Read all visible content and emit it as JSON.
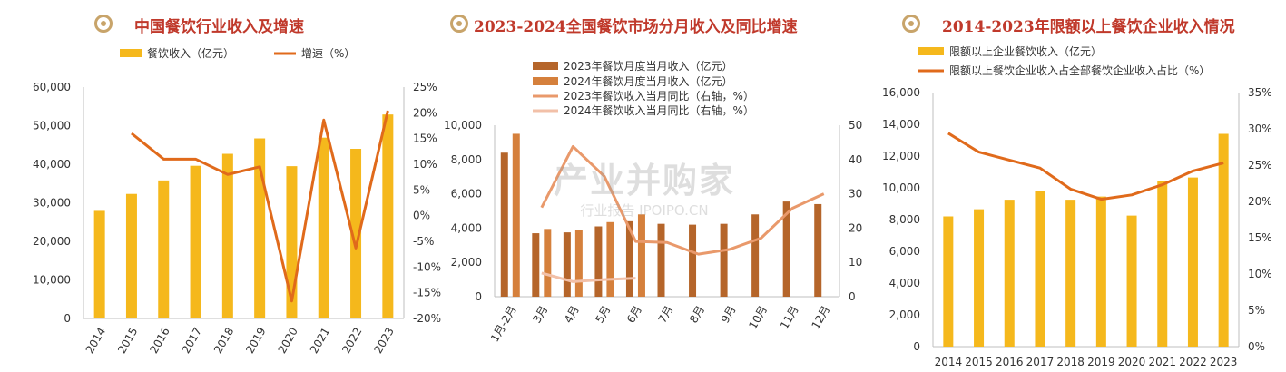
{
  "watermark": {
    "main": "产业并购家",
    "sub": "行业报告 IPOIPO.CN"
  },
  "chart_data": [
    {
      "type": "bar",
      "title": "中国餐饮行业收入及增速",
      "categories": [
        "2014",
        "2015",
        "2016",
        "2017",
        "2018",
        "2019",
        "2020",
        "2021",
        "2022",
        "2023"
      ],
      "series": [
        {
          "name": "餐饮收入（亿元）",
          "kind": "bar",
          "axis": "left",
          "color": "#f5b81c",
          "values": [
            27900,
            32300,
            35800,
            39600,
            42700,
            46700,
            39500,
            46900,
            44000,
            52900
          ]
        },
        {
          "name": "增速（%）",
          "kind": "line",
          "axis": "right",
          "color": "#e06a1b",
          "values": [
            null,
            16,
            11,
            11,
            8,
            9.5,
            -16.6,
            18.6,
            -6.3,
            20.4
          ]
        }
      ],
      "left_axis": {
        "ylim": [
          0,
          60000
        ],
        "ticks": [
          "0",
          "10,000",
          "20,000",
          "30,000",
          "40,000",
          "50,000",
          "60,000"
        ]
      },
      "right_axis": {
        "ylim": [
          -20,
          25
        ],
        "ticks": [
          "-20%",
          "-15%",
          "-10%",
          "-5%",
          "0%",
          "5%",
          "10%",
          "15%",
          "20%",
          "25%"
        ]
      },
      "legend": "top"
    },
    {
      "type": "bar",
      "title": "2023-2024全国餐饮市场分月收入及同比增速",
      "categories": [
        "1月-2月",
        "3月",
        "4月",
        "5月",
        "6月",
        "7月",
        "8月",
        "9月",
        "10月",
        "11月",
        "12月"
      ],
      "series": [
        {
          "name": "2023年餐饮月度当月收入（亿元）",
          "kind": "bar",
          "axis": "left",
          "color": "#b5652a",
          "values": [
            8400,
            3700,
            3750,
            4100,
            4400,
            4250,
            4200,
            4250,
            4800,
            5550,
            5400
          ]
        },
        {
          "name": "2024年餐饮月度当月收入（亿元）",
          "kind": "bar",
          "axis": "left",
          "color": "#d5803c",
          "values": [
            9500,
            3950,
            3900,
            4350,
            4800,
            null,
            null,
            null,
            null,
            null,
            null
          ]
        },
        {
          "name": "2023年餐饮收入当月同比（右轴，%）",
          "kind": "line",
          "axis": "right",
          "color": "#e9996b",
          "values": [
            null,
            26,
            43.8,
            35.1,
            16.1,
            15.8,
            12.4,
            13.8,
            17.1,
            25.8,
            30
          ]
        },
        {
          "name": "2024年餐饮收入当月同比（右轴，%）",
          "kind": "line",
          "axis": "right",
          "color": "#f2c0a8",
          "values": [
            null,
            6.9,
            4.4,
            5,
            5.4,
            null,
            null,
            null,
            null,
            null,
            null
          ]
        }
      ],
      "left_axis": {
        "ylim": [
          0,
          10000
        ],
        "ticks": [
          "0",
          "2,000",
          "4,000",
          "6,000",
          "8,000",
          "10,000"
        ]
      },
      "right_axis": {
        "ylim": [
          0,
          50
        ],
        "ticks": [
          "0",
          "10",
          "20",
          "30",
          "40",
          "50"
        ]
      },
      "legend": "top"
    },
    {
      "type": "bar",
      "title": "2014-2023年限额以上餐饮企业收入情况",
      "categories": [
        "2014",
        "2015",
        "2016",
        "2017",
        "2018",
        "2019",
        "2020",
        "2021",
        "2022",
        "2023"
      ],
      "series": [
        {
          "name": "限额以上企业餐饮收入（亿元）",
          "kind": "bar",
          "axis": "left",
          "color": "#f5b81c",
          "values": [
            8200,
            8650,
            9250,
            9800,
            9250,
            9450,
            8250,
            10450,
            10650,
            13400
          ]
        },
        {
          "name": "限额以上餐饮企业收入占全部餐饮企业收入占比（%）",
          "kind": "line",
          "axis": "right",
          "color": "#e06a1b",
          "values": [
            29.4,
            26.8,
            25.7,
            24.6,
            21.7,
            20.3,
            20.9,
            22.3,
            24.2,
            25.3
          ]
        }
      ],
      "left_axis": {
        "ylim": [
          0,
          16000
        ],
        "ticks": [
          "0",
          "2,000",
          "4,000",
          "6,000",
          "8,000",
          "10,000",
          "12,000",
          "14,000",
          "16,000"
        ]
      },
      "right_axis": {
        "ylim": [
          0,
          35
        ],
        "ticks": [
          "0%",
          "5%",
          "10%",
          "15%",
          "20%",
          "25%",
          "30%",
          "35%"
        ]
      },
      "legend": "top-left"
    }
  ]
}
